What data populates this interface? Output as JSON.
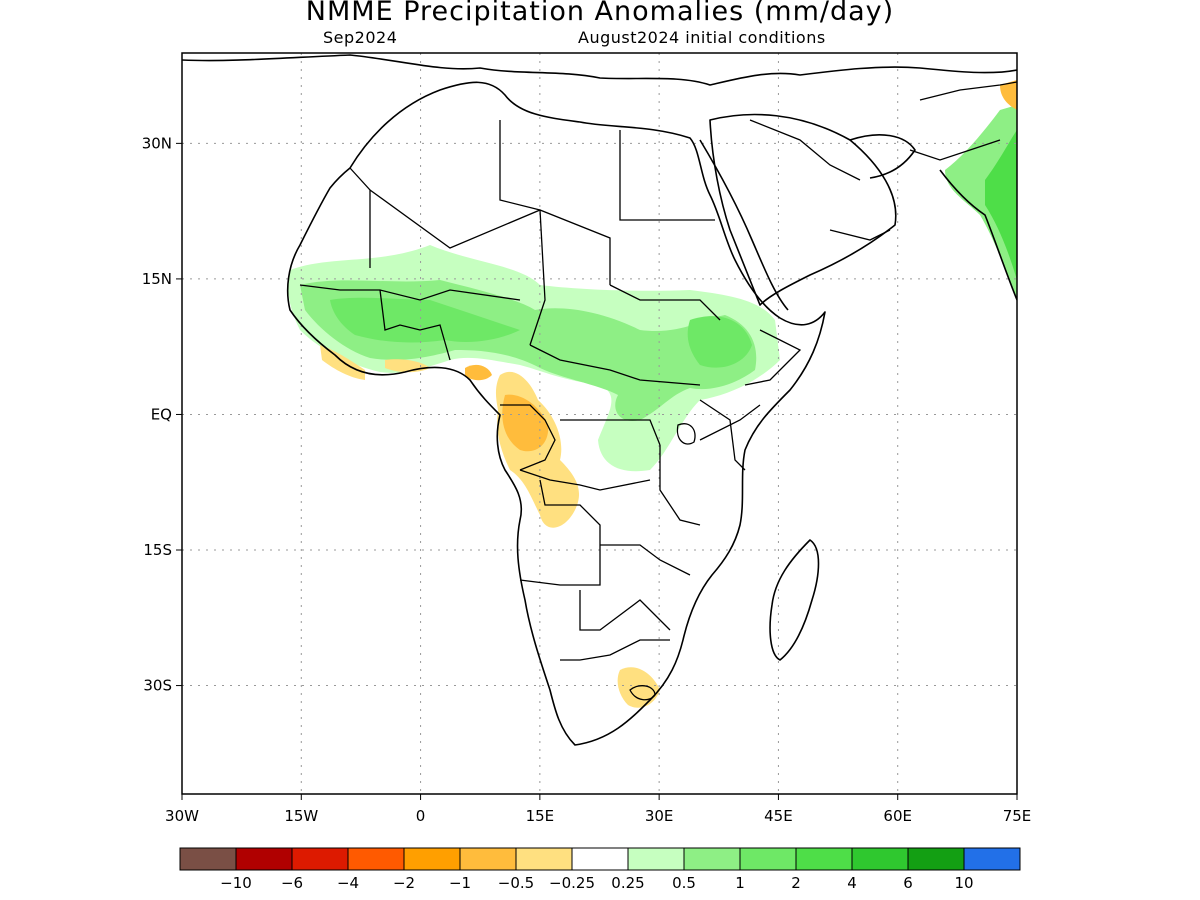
{
  "title": "NMME Precipitation Anomalies (mm/day)",
  "target_month": "Sep2024",
  "initial_conditions": "August2024 initial conditions",
  "map": {
    "lon_range": [
      -30,
      75
    ],
    "lat_range": [
      -42,
      40
    ],
    "x_ticks": [
      {
        "lon": -30,
        "label": "30W"
      },
      {
        "lon": -15,
        "label": "15W"
      },
      {
        "lon": 0,
        "label": "0"
      },
      {
        "lon": 15,
        "label": "15E"
      },
      {
        "lon": 30,
        "label": "30E"
      },
      {
        "lon": 45,
        "label": "45E"
      },
      {
        "lon": 60,
        "label": "60E"
      },
      {
        "lon": 75,
        "label": "75E"
      }
    ],
    "y_ticks": [
      {
        "lat": 30,
        "label": "30N"
      },
      {
        "lat": 15,
        "label": "15N"
      },
      {
        "lat": 0,
        "label": "EQ"
      },
      {
        "lat": -15,
        "label": "15S"
      },
      {
        "lat": -30,
        "label": "30S"
      }
    ],
    "gridlines": "dotted"
  },
  "colorbar": {
    "colors": [
      "#7a4f45",
      "#b00000",
      "#dd1a00",
      "#ff5a00",
      "#ff9f00",
      "#ffbc3c",
      "#ffe080",
      "#ffffff",
      "#c6ffc0",
      "#8eef85",
      "#6ee866",
      "#4ede48",
      "#2fc82f",
      "#139f13",
      "#2270e8"
    ],
    "labels": [
      "−10",
      "−6",
      "−4",
      "−2",
      "−1",
      "−0.5",
      "−0.25",
      "0.25",
      "0.5",
      "1",
      "2",
      "4",
      "6",
      "10"
    ]
  },
  "regions": [
    {
      "name": "Sahel wet anomaly",
      "anomaly": "+0.5 to +1",
      "color": "#8eef85"
    },
    {
      "name": "East Africa wet anomaly",
      "anomaly": "+0.5 to +1",
      "color": "#8eef85"
    },
    {
      "name": "India wet anomaly",
      "anomaly": "+0.5 to +2",
      "color": "#6ee866"
    },
    {
      "name": "Congo/Angola dry anomaly",
      "anomaly": "-0.25 to -1",
      "color": "#ffe080"
    },
    {
      "name": "Gulf of Guinea coast dry anomaly",
      "anomaly": "-0.25 to -0.5",
      "color": "#ffe080"
    },
    {
      "name": "South Africa dry anomaly",
      "anomaly": "-0.25 to -0.5",
      "color": "#ffe080"
    }
  ]
}
